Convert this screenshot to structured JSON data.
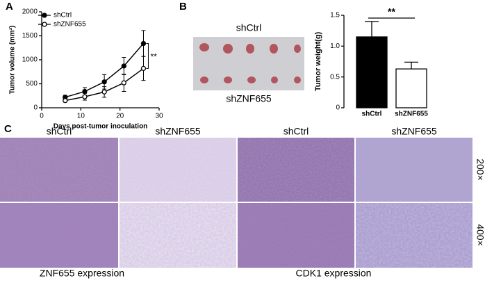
{
  "panel_labels": [
    "A",
    "B",
    "C"
  ],
  "chart_data": [
    {
      "type": "line",
      "title_none": null,
      "x_label": "Days post-tumor inoculation",
      "y_label": "Tumor volume (mm³)",
      "x": [
        6,
        11,
        16,
        21,
        26
      ],
      "series": [
        {
          "name": "shCtrl",
          "color": "#000000",
          "marker": "filled",
          "values": [
            220,
            340,
            540,
            870,
            1340
          ],
          "errors": [
            40,
            80,
            150,
            180,
            270
          ]
        },
        {
          "name": "shZNF655",
          "color": "#000000",
          "marker": "open",
          "values": [
            150,
            230,
            330,
            520,
            820
          ],
          "errors": [
            30,
            70,
            110,
            180,
            250
          ]
        }
      ],
      "xlim": [
        0,
        30
      ],
      "xticks": [
        0,
        10,
        20,
        30
      ],
      "ylim": [
        0,
        2000
      ],
      "yticks": [
        0,
        500,
        1000,
        1500,
        2000
      ],
      "annotation": "**",
      "legend": "upper-left"
    },
    {
      "type": "bar",
      "y_label": "Tumor weight(g)",
      "categories": [
        "shCtrl",
        "shZNF655"
      ],
      "values": [
        1.15,
        0.63
      ],
      "errors": [
        0.25,
        0.11
      ],
      "colors": [
        "#000000",
        "#ffffff"
      ],
      "ylim": [
        0,
        1.5
      ],
      "yticks": [
        0,
        0.5,
        {
          "value": 1,
          "label": "1.0"
        },
        1.5
      ],
      "annotation": "**"
    }
  ],
  "photo_b": {
    "top_label": "shCtrl",
    "bottom_label": "shZNF655"
  },
  "panel_c": {
    "column_labels": [
      "shCtrl",
      "shZNF655",
      "shCtrl",
      "shZNF655"
    ],
    "row_labels": [
      "200×",
      "400×"
    ],
    "group_labels": [
      "ZNF655 expression",
      "CDK1 expression"
    ]
  }
}
